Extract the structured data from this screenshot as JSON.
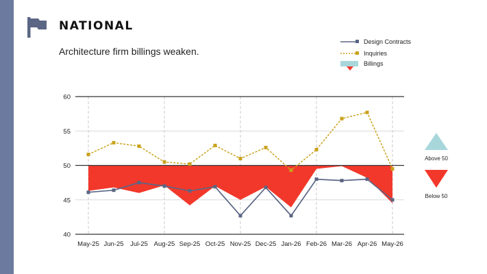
{
  "header": {
    "section_title": "NATIONAL",
    "subtitle": "Architecture firm billings weaken."
  },
  "colors": {
    "side_bar": "#6b7a9e",
    "design_contracts": "#5b6684",
    "inquiries": "#c9a21c",
    "billings_below": "#f2382b",
    "billings_above": "#a8d7db",
    "axis": "#333333",
    "gridline": "#d8d8d8",
    "vertical_dash": "#c8c8c8"
  },
  "icons": {
    "flag": "flag-icon"
  },
  "legend": {
    "design_contracts": "Design Contracts",
    "inquiries": "Inquiries",
    "billings": "Billings"
  },
  "side_legend": {
    "above": "Above 50",
    "below": "Below 50"
  },
  "chart_data": {
    "type": "line",
    "categories": [
      "May-25",
      "Jun-25",
      "Jul-25",
      "Aug-25",
      "Sep-25",
      "Oct-25",
      "Nov-25",
      "Dec-25",
      "Jan-26",
      "Feb-26",
      "Mar-26",
      "Apr-26",
      "May-26"
    ],
    "baseline": 50,
    "ylim": [
      40,
      60
    ],
    "yticks": [
      40,
      45,
      50,
      55,
      60
    ],
    "series": [
      {
        "name": "Design Contracts",
        "style": "solid-square-markers",
        "values": [
          46.1,
          46.4,
          47.5,
          47.0,
          46.3,
          46.9,
          42.7,
          46.8,
          42.7,
          48.0,
          47.8,
          48.0,
          45.0
        ]
      },
      {
        "name": "Inquiries",
        "style": "dashed-square-markers",
        "values": [
          51.6,
          53.3,
          52.8,
          50.5,
          50.2,
          52.9,
          51.0,
          52.6,
          49.3,
          52.3,
          56.8,
          57.7,
          49.5
        ]
      },
      {
        "name": "Billings",
        "style": "area-relative-to-50",
        "values": [
          46.3,
          46.8,
          46.0,
          47.1,
          44.2,
          47.0,
          45.0,
          46.9,
          43.9,
          49.5,
          49.9,
          48.2,
          44.5
        ]
      }
    ],
    "grid": {
      "horizontal": true,
      "vertical_dashed": true
    },
    "legend_position": "top-right"
  }
}
